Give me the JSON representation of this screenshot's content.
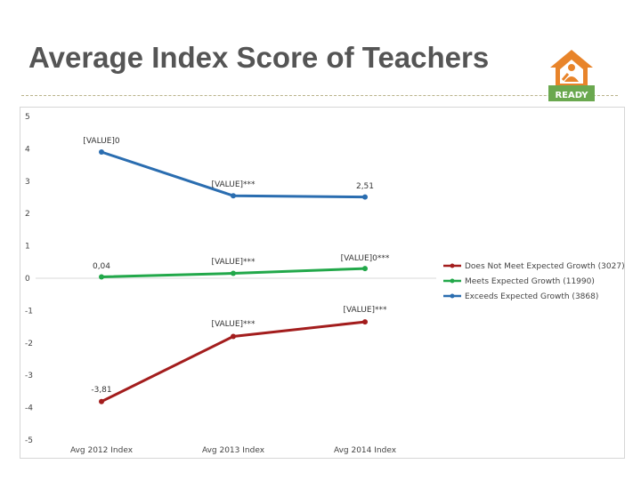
{
  "slide": {
    "title": "Average Index Score of Teachers",
    "logo_text": "READY"
  },
  "colors": {
    "red": "#a31d1d",
    "green": "#22a84a",
    "blue": "#2a6db0",
    "logo_orange": "#e8842a",
    "logo_green": "#6aa84f"
  },
  "chart_data": {
    "type": "line",
    "categories": [
      "Avg 2012 Index",
      "Avg 2013 Index",
      "Avg 2014 Index"
    ],
    "ylim": [
      -5,
      5
    ],
    "yticks": [
      5,
      4,
      3,
      2,
      1,
      0,
      -1,
      -2,
      -3,
      -4,
      -5
    ],
    "grid": false,
    "legend_position": "right",
    "series": [
      {
        "name": "Does Not Meet Expected Growth (3027)",
        "color": "#a31d1d",
        "values": [
          -3.81,
          -1.8,
          -1.35
        ],
        "labels": [
          "-3,81",
          "[VALUE]***",
          "[VALUE]***"
        ]
      },
      {
        "name": "Meets Expected Growth (11990)",
        "color": "#22a84a",
        "values": [
          0.04,
          0.15,
          0.3
        ],
        "labels": [
          "0,04",
          "[VALUE]***",
          "[VALUE]0***"
        ]
      },
      {
        "name": "Exceeds Expected Growth (3868)",
        "color": "#2a6db0",
        "values": [
          3.9,
          2.55,
          2.51
        ],
        "labels": [
          "[VALUE]0",
          "[VALUE]***",
          "2,51"
        ]
      }
    ]
  }
}
